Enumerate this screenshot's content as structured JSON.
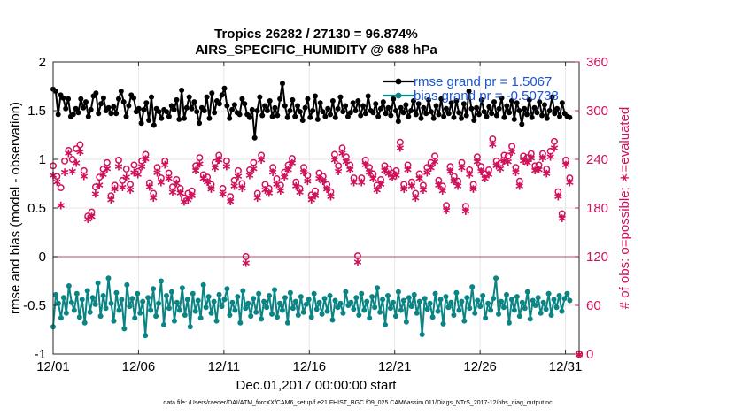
{
  "chart_data": {
    "type": "line",
    "title": "Tropics 26282 / 27130 = 96.874%",
    "subtitle": "AIRS_SPECIFIC_HUMIDITY @ 688 hPa",
    "xlabel": "Dec.01,2017 00:00:00 start",
    "ylabel": "rmse and bias (model - observation)",
    "ylabel_right": "# of obs: o=possible; ∗=evaluated",
    "ylim": [
      -1,
      2
    ],
    "ylim_right": [
      0,
      360
    ],
    "xlim": [
      0,
      30.8
    ],
    "x_ticks": [
      0,
      5,
      10,
      15,
      20,
      25,
      30
    ],
    "x_tick_labels": [
      "12/01",
      "12/06",
      "12/11",
      "12/16",
      "12/21",
      "12/26",
      "12/31"
    ],
    "y_ticks": [
      -1,
      -0.5,
      0,
      0.5,
      1,
      1.5,
      2
    ],
    "y_tick_labels": [
      "-1",
      "-0.5",
      "0",
      "0.5",
      "1",
      "1.5",
      "2"
    ],
    "y_ticks_right": [
      0,
      60,
      120,
      180,
      240,
      300,
      360
    ],
    "y_tick_labels_right": [
      "0",
      "60",
      "120",
      "180",
      "240",
      "300",
      "360"
    ],
    "footnote": "data file: /Users/raeder/DAI/ATM_forcXX/CAM6_setup/f.e21.FHIST_BGC.f09_025.CAM6assim.011/Diags_NTrS_2017-12/obs_diag_output.nc",
    "series": [
      {
        "name": "rmse grand pr = 1.5067",
        "color": "#000000",
        "axis": "left",
        "values": [
          1.72,
          1.7,
          1.46,
          1.66,
          1.63,
          1.52,
          1.62,
          1.44,
          1.46,
          1.52,
          1.48,
          1.62,
          1.53,
          1.59,
          1.44,
          1.51,
          1.65,
          1.68,
          1.47,
          1.57,
          1.63,
          1.5,
          1.53,
          1.47,
          1.54,
          1.47,
          1.62,
          1.7,
          1.59,
          1.44,
          1.55,
          1.66,
          1.63,
          1.49,
          1.52,
          1.37,
          1.51,
          1.58,
          1.4,
          1.64,
          1.35,
          1.52,
          1.49,
          1.42,
          1.51,
          1.49,
          1.44,
          1.55,
          1.51,
          1.61,
          1.41,
          1.71,
          1.42,
          1.53,
          1.64,
          1.52,
          1.59,
          1.49,
          1.37,
          1.53,
          1.5,
          1.64,
          1.42,
          1.68,
          1.48,
          1.6,
          1.57,
          1.66,
          1.73,
          1.55,
          1.42,
          1.51,
          1.56,
          1.48,
          1.46,
          1.62,
          1.57,
          1.46,
          1.43,
          1.51,
          1.22,
          1.5,
          1.64,
          1.45,
          1.55,
          1.5,
          1.6,
          1.44,
          1.53,
          1.45,
          1.62,
          1.78,
          1.55,
          1.43,
          1.5,
          1.61,
          1.44,
          1.55,
          1.49,
          1.4,
          1.53,
          1.62,
          1.43,
          1.5,
          1.65,
          1.41,
          1.58,
          1.49,
          1.44,
          1.52,
          1.46,
          1.6,
          1.43,
          1.52,
          1.64,
          1.49,
          1.55,
          1.44,
          1.48,
          1.58,
          1.5,
          1.6,
          1.45,
          1.55,
          1.47,
          1.65,
          1.5,
          1.48,
          1.57,
          1.44,
          1.52,
          1.59,
          1.47,
          1.53,
          1.45,
          1.62,
          1.5,
          1.39,
          1.53,
          1.48,
          1.56,
          1.44,
          1.5,
          1.6,
          1.46,
          1.57,
          1.42,
          1.53,
          1.47,
          1.61,
          1.49,
          1.42,
          1.55,
          1.46,
          1.62,
          1.44,
          1.52,
          1.47,
          1.58,
          1.43,
          1.6,
          1.48,
          1.42,
          1.57,
          1.45,
          1.7,
          1.52,
          1.4,
          1.53,
          1.46,
          1.61,
          1.49,
          1.44,
          1.54,
          1.47,
          1.59,
          1.45,
          1.52,
          1.63,
          1.43,
          1.55,
          1.48,
          1.6,
          1.41,
          1.58,
          1.5,
          1.36,
          1.52,
          1.46,
          1.61,
          1.43,
          1.53,
          1.48,
          1.59,
          1.45,
          1.56,
          1.42,
          1.5,
          1.64,
          1.47,
          1.52,
          1.44,
          1.58,
          1.47,
          1.44,
          1.43
        ]
      },
      {
        "name": "bias grand pr = -0.50738",
        "color": "#0a8484",
        "axis": "left",
        "values": [
          -0.72,
          -0.39,
          -0.48,
          -0.63,
          -0.42,
          -0.58,
          -0.3,
          -0.47,
          -0.55,
          -0.38,
          -0.62,
          -0.44,
          -0.68,
          -0.35,
          -0.57,
          -0.42,
          -0.49,
          -0.27,
          -0.61,
          -0.4,
          -0.53,
          -0.22,
          -0.48,
          -0.66,
          -0.37,
          -0.55,
          -0.44,
          -0.74,
          -0.29,
          -0.51,
          -0.43,
          -0.63,
          -0.38,
          -0.58,
          -0.46,
          -0.81,
          -0.42,
          -0.55,
          -0.33,
          -0.61,
          -0.48,
          -0.25,
          -0.7,
          -0.4,
          -0.53,
          -0.36,
          -0.66,
          -0.47,
          -0.55,
          -0.32,
          -0.6,
          -0.44,
          -0.72,
          -0.38,
          -0.56,
          -0.45,
          -0.63,
          -0.29,
          -0.52,
          -0.41,
          -0.58,
          -0.46,
          -0.66,
          -0.39,
          -0.51,
          -0.44,
          -0.33,
          -0.6,
          -0.47,
          -0.55,
          -0.41,
          -0.68,
          -0.35,
          -0.53,
          -0.48,
          -0.61,
          -0.43,
          -0.57,
          -0.38,
          -0.64,
          -0.46,
          -0.52,
          -0.4,
          -0.59,
          -0.34,
          -0.62,
          -0.48,
          -0.55,
          -0.42,
          -0.68,
          -0.37,
          -0.53,
          -0.46,
          -0.6,
          -0.41,
          -0.57,
          -0.49,
          -0.44,
          -0.62,
          -0.38,
          -0.54,
          -0.47,
          -0.59,
          -0.43,
          -0.56,
          -0.4,
          -0.65,
          -0.45,
          -0.52,
          -0.48,
          -0.58,
          -0.36,
          -0.5,
          -0.47,
          -0.54,
          -0.42,
          -0.6,
          -0.38,
          -0.55,
          -0.46,
          -0.63,
          -0.41,
          -0.52,
          -0.32,
          -0.57,
          -0.44,
          -0.7,
          -0.4,
          -0.53,
          -0.47,
          -0.61,
          -0.36,
          -0.55,
          -0.45,
          -0.67,
          -0.42,
          -0.51,
          -0.39,
          -0.58,
          -0.46,
          -0.8,
          -0.43,
          -0.54,
          -0.48,
          -0.62,
          -0.38,
          -0.56,
          -0.44,
          -0.69,
          -0.41,
          -0.52,
          -0.47,
          -0.6,
          -0.37,
          -0.55,
          -0.46,
          -0.66,
          -0.42,
          -0.53,
          -0.31,
          -0.58,
          -0.45,
          -0.51,
          -0.4,
          -0.63,
          -0.48,
          -0.55,
          -0.43,
          -0.22,
          -0.59,
          -0.46,
          -0.52,
          -0.39,
          -0.68,
          -0.44,
          -0.55,
          -0.41,
          -0.61,
          -0.47,
          -0.53,
          -0.36,
          -0.64,
          -0.45,
          -0.5,
          -0.42,
          -0.58,
          -0.47,
          -0.54,
          -0.38,
          -0.6,
          -0.44,
          -0.52,
          -0.4,
          -0.56,
          -0.43,
          -0.38,
          -0.45
        ]
      }
    ],
    "obs_possible_markers": {
      "name": "o=possible",
      "color": "#d0105a",
      "axis": "right",
      "values": [
        232,
        219,
        205,
        238,
        251,
        240,
        253,
        258,
        226,
        170,
        175,
        206,
        218,
        228,
        236,
        195,
        208,
        239,
        214,
        228,
        209,
        233,
        225,
        238,
        246,
        211,
        198,
        230,
        217,
        238,
        223,
        206,
        215,
        204,
        192,
        198,
        201,
        232,
        242,
        221,
        218,
        209,
        236,
        245,
        204,
        238,
        194,
        214,
        226,
        210,
        120,
        227,
        236,
        198,
        245,
        209,
        204,
        230,
        216,
        208,
        224,
        233,
        241,
        212,
        204,
        230,
        220,
        196,
        201,
        223,
        219,
        209,
        200,
        246,
        232,
        254,
        243,
        233,
        217,
        121,
        217,
        239,
        230,
        222,
        208,
        215,
        232,
        228,
        223,
        226,
        261,
        209,
        233,
        212,
        198,
        222,
        208,
        230,
        236,
        244,
        214,
        207,
        183,
        231,
        219,
        213,
        236,
        182,
        227,
        209,
        243,
        231,
        222,
        227,
        265,
        238,
        235,
        245,
        244,
        256,
        230,
        213,
        244,
        242,
        247,
        232,
        233,
        247,
        228,
        250,
        262,
        200,
        173,
        239,
        217
      ]
    },
    "obs_evaluated_markers": {
      "name": "∗=evaluated",
      "color": "#d0105a",
      "axis": "right",
      "values": [
        221,
        213,
        184,
        225,
        248,
        226,
        236,
        250,
        220,
        167,
        170,
        198,
        209,
        222,
        229,
        191,
        204,
        232,
        206,
        219,
        203,
        224,
        222,
        232,
        241,
        207,
        193,
        224,
        212,
        234,
        217,
        200,
        211,
        199,
        188,
        191,
        196,
        227,
        235,
        217,
        213,
        204,
        230,
        240,
        198,
        232,
        189,
        208,
        220,
        205,
        113,
        221,
        229,
        193,
        240,
        203,
        199,
        225,
        210,
        202,
        219,
        228,
        236,
        208,
        200,
        225,
        214,
        191,
        196,
        217,
        214,
        204,
        195,
        240,
        226,
        248,
        238,
        228,
        212,
        114,
        212,
        234,
        225,
        217,
        203,
        210,
        227,
        223,
        218,
        221,
        255,
        204,
        228,
        208,
        193,
        217,
        203,
        224,
        230,
        238,
        209,
        202,
        178,
        226,
        214,
        208,
        230,
        177,
        222,
        204,
        238,
        226,
        217,
        222,
        259,
        233,
        229,
        239,
        238,
        250,
        225,
        208,
        239,
        237,
        242,
        227,
        228,
        242,
        223,
        244,
        255,
        195,
        168,
        234,
        212
      ]
    },
    "zero_line": 0
  }
}
